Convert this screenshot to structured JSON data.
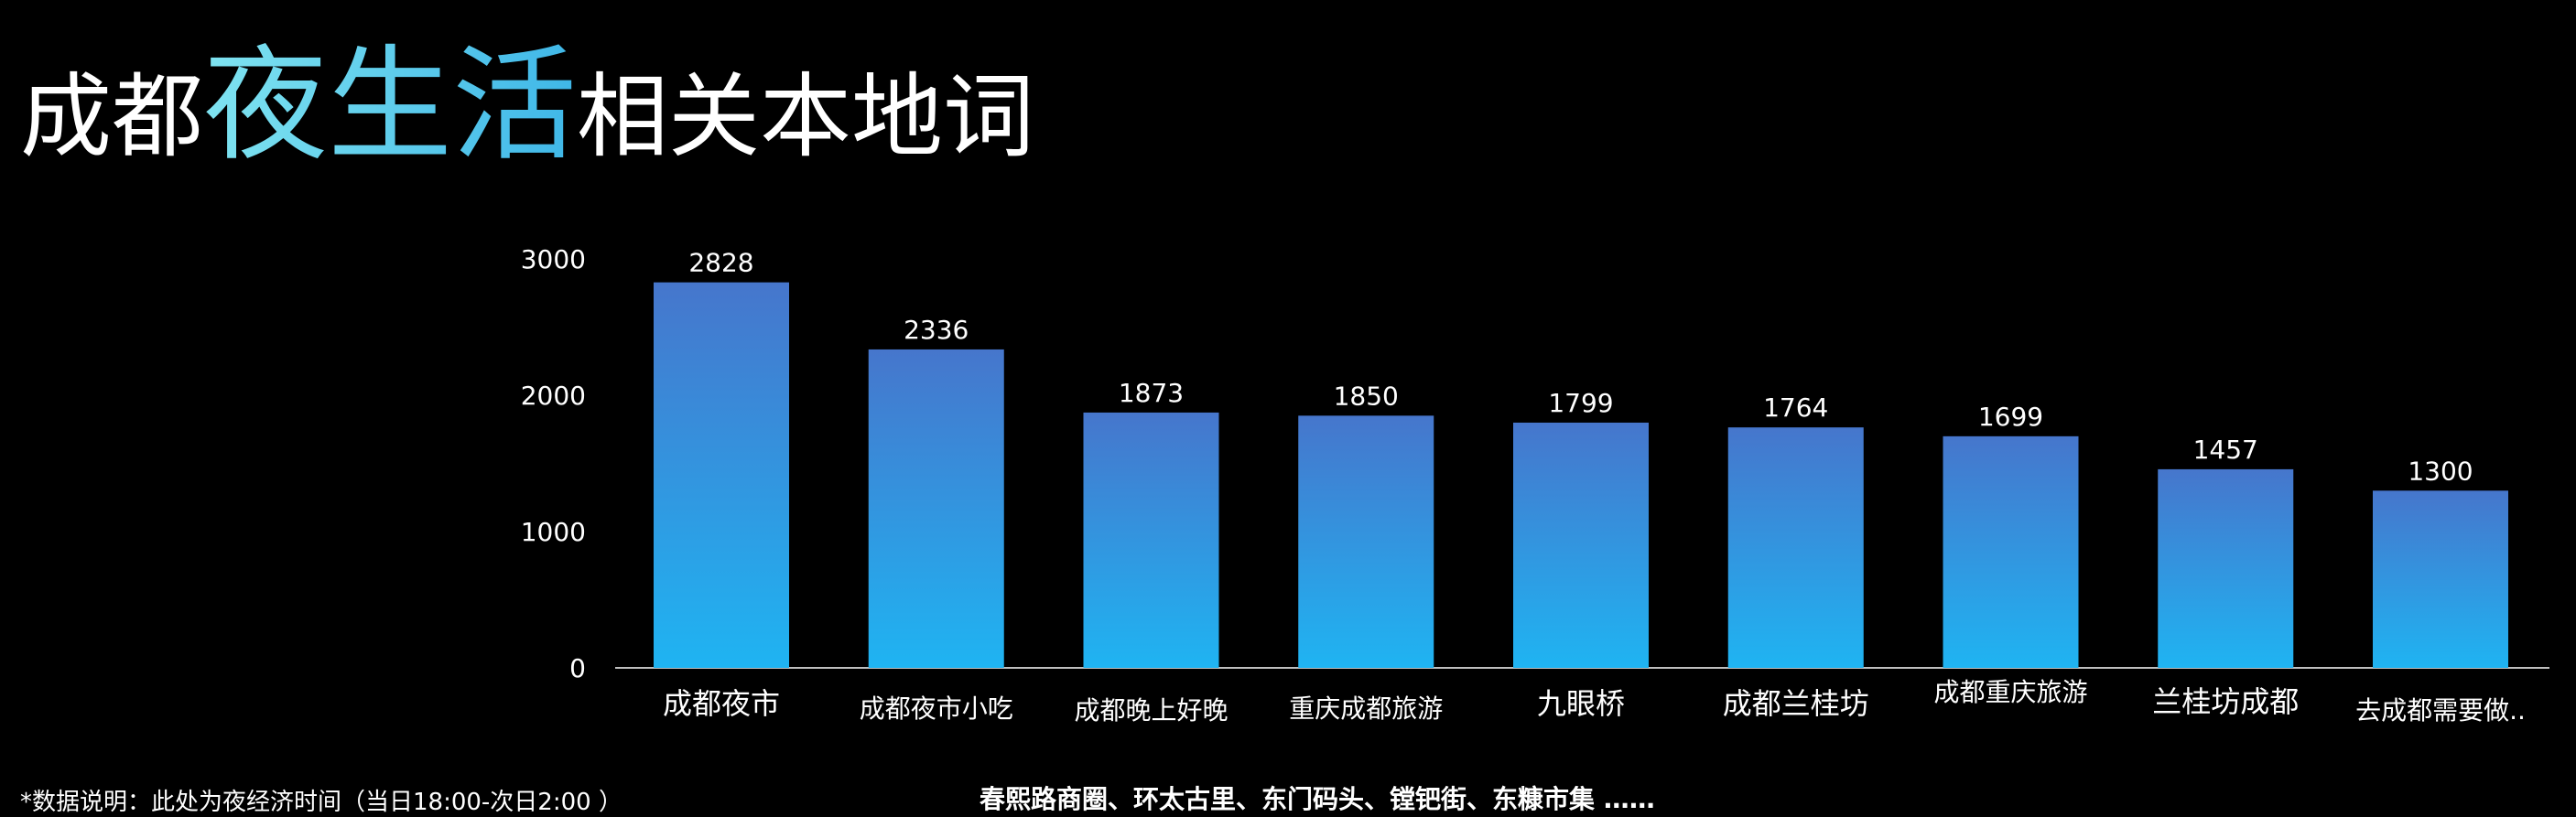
{
  "title": {
    "part1": "成都",
    "highlight": "夜生活",
    "part2": "相关本地词"
  },
  "chart_data": {
    "type": "bar",
    "categories": [
      "成都夜市",
      "成都夜市小吃",
      "成都晚上好晚",
      "重庆成都旅游",
      "九眼桥",
      "成都兰桂坊",
      "成都重庆旅游",
      "兰桂坊成都",
      "去成都需要做.."
    ],
    "values": [
      2828,
      2336,
      1873,
      1850,
      1799,
      1764,
      1699,
      1457,
      1300
    ],
    "ylim": [
      0,
      3000
    ],
    "yticks": [
      0,
      1000,
      2000,
      3000
    ],
    "title": "",
    "xlabel": "",
    "ylabel": "",
    "grid": false,
    "colors": {
      "bar_top": "#4676cc",
      "bar_bottom": "#1fb4f2",
      "axis": "#bfbfbf"
    }
  },
  "footnote": "*数据说明：此处为夜经济时间（当日18:00-次日2:00 ）",
  "bottom_note": "春熙路商圈、环太古里、东门码头、镗钯街、东糠市集 ……"
}
